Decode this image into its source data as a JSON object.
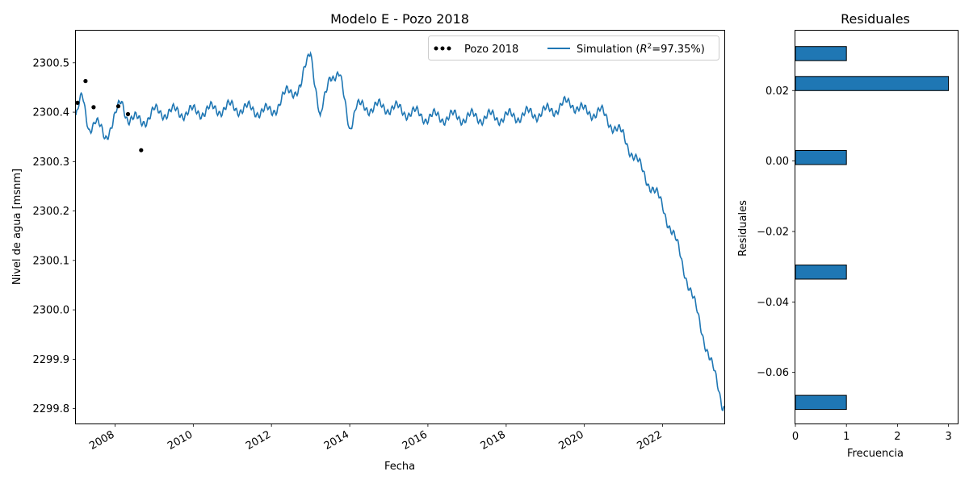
{
  "chart_data": [
    {
      "type": "line",
      "title": "Modelo E - Pozo 2018",
      "xlabel": "Fecha",
      "ylabel": "Nivel de agua [msnm]",
      "x_ticks": [
        "2008",
        "2010",
        "2012",
        "2014",
        "2016",
        "2018",
        "2020",
        "2022"
      ],
      "y_ticks": [
        "2299.8",
        "2299.9",
        "2300.0",
        "2300.1",
        "2300.2",
        "2300.3",
        "2300.4",
        "2300.5"
      ],
      "xlim": [
        "2007-01-01",
        "2023-07-31"
      ],
      "ylim": [
        2299.77,
        2300.565
      ],
      "grid": false,
      "legend_position": "top-right",
      "series": [
        {
          "name": "Pozo 2018",
          "kind": "scatter",
          "color": "#000000",
          "points": [
            {
              "x": "2007-01-15",
              "y": 2300.419
            },
            {
              "x": "2007-04-01",
              "y": 2300.463
            },
            {
              "x": "2007-06-15",
              "y": 2300.41
            },
            {
              "x": "2008-02-01",
              "y": 2300.412
            },
            {
              "x": "2008-05-01",
              "y": 2300.396
            },
            {
              "x": "2008-09-01",
              "y": 2300.323
            }
          ]
        },
        {
          "name": "Simulation ($R^2$=97.35%)",
          "kind": "line",
          "color": "#1f77b4",
          "points": [
            {
              "x": "2007-01-01",
              "y": 2300.39
            },
            {
              "x": "2007-03-01",
              "y": 2300.43
            },
            {
              "x": "2007-05-01",
              "y": 2300.37
            },
            {
              "x": "2007-07-01",
              "y": 2300.38
            },
            {
              "x": "2007-10-01",
              "y": 2300.35
            },
            {
              "x": "2008-01-01",
              "y": 2300.39
            },
            {
              "x": "2008-03-01",
              "y": 2300.42
            },
            {
              "x": "2008-05-01",
              "y": 2300.39
            },
            {
              "x": "2008-09-01",
              "y": 2300.38
            },
            {
              "x": "2009-01-01",
              "y": 2300.4
            },
            {
              "x": "2010-01-01",
              "y": 2300.4
            },
            {
              "x": "2011-01-01",
              "y": 2300.41
            },
            {
              "x": "2012-01-01",
              "y": 2300.4
            },
            {
              "x": "2012-06-01",
              "y": 2300.44
            },
            {
              "x": "2012-10-01",
              "y": 2300.45
            },
            {
              "x": "2013-01-01",
              "y": 2300.53
            },
            {
              "x": "2013-04-01",
              "y": 2300.38
            },
            {
              "x": "2013-07-01",
              "y": 2300.48
            },
            {
              "x": "2013-10-01",
              "y": 2300.47
            },
            {
              "x": "2014-01-01",
              "y": 2300.37
            },
            {
              "x": "2014-03-01",
              "y": 2300.41
            },
            {
              "x": "2015-01-01",
              "y": 2300.41
            },
            {
              "x": "2016-01-01",
              "y": 2300.39
            },
            {
              "x": "2017-01-01",
              "y": 2300.39
            },
            {
              "x": "2018-01-01",
              "y": 2300.39
            },
            {
              "x": "2019-01-01",
              "y": 2300.4
            },
            {
              "x": "2019-09-01",
              "y": 2300.42
            },
            {
              "x": "2020-01-01",
              "y": 2300.4
            },
            {
              "x": "2020-06-01",
              "y": 2300.4
            },
            {
              "x": "2021-01-01",
              "y": 2300.35
            },
            {
              "x": "2021-06-01",
              "y": 2300.29
            },
            {
              "x": "2022-01-01",
              "y": 2300.21
            },
            {
              "x": "2022-06-01",
              "y": 2300.12
            },
            {
              "x": "2023-01-01",
              "y": 2299.96
            },
            {
              "x": "2023-04-01",
              "y": 2299.89
            },
            {
              "x": "2023-07-15",
              "y": 2299.81
            }
          ]
        }
      ]
    },
    {
      "type": "bar",
      "orientation": "horizontal",
      "title": "Residuales",
      "xlabel": "Frecuencia",
      "ylabel": "Residuales",
      "x_ticks": [
        "0",
        "1",
        "2",
        "3"
      ],
      "y_ticks": [
        "−0.06",
        "−0.04",
        "−0.02",
        "0.00",
        "0.02"
      ],
      "xlim": [
        0,
        3.18
      ],
      "ylim": [
        -0.0745,
        0.037
      ],
      "bar_color": "#1f77b4",
      "bars": [
        {
          "residual_low": -0.0705,
          "residual_high": -0.0665,
          "count": 1
        },
        {
          "residual_low": -0.0335,
          "residual_high": -0.0295,
          "count": 1
        },
        {
          "residual_low": -0.001,
          "residual_high": 0.003,
          "count": 1
        },
        {
          "residual_low": 0.02,
          "residual_high": 0.024,
          "count": 3
        },
        {
          "residual_low": 0.0285,
          "residual_high": 0.0325,
          "count": 1
        }
      ]
    }
  ]
}
